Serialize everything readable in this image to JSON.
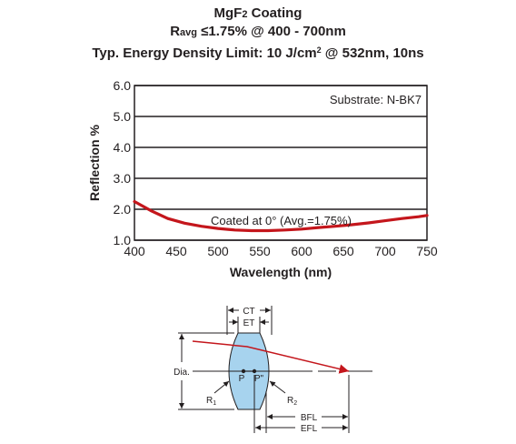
{
  "title": {
    "line1": {
      "pre": "MgF",
      "sub": "2",
      "post": " Coating"
    },
    "line2": {
      "pre": "R",
      "sub": "avg",
      "post": " ≤1.75% @ 400 - 700nm"
    },
    "line3": {
      "pre": "Typ. Energy Density Limit: 10 J/cm",
      "sup": "2",
      "post": " @ 532nm, 10ns"
    }
  },
  "chart_data": {
    "type": "line",
    "xlabel": "Wavelength (nm)",
    "ylabel": "Reflection %",
    "xlim": [
      400,
      750
    ],
    "ylim": [
      1.0,
      6.0
    ],
    "x_ticks": [
      "400",
      "450",
      "500",
      "550",
      "600",
      "650",
      "700",
      "750"
    ],
    "y_ticks": [
      "1.0",
      "2.0",
      "3.0",
      "4.0",
      "5.0",
      "6.0"
    ],
    "grid": "horizontal",
    "series_color": "#c4161c",
    "series": [
      {
        "x": [
          400,
          420,
          440,
          460,
          480,
          500,
          520,
          540,
          560,
          580,
          600,
          620,
          640,
          660,
          680,
          700,
          720,
          740,
          750
        ],
        "y": [
          2.25,
          1.95,
          1.7,
          1.55,
          1.45,
          1.38,
          1.33,
          1.31,
          1.31,
          1.33,
          1.36,
          1.41,
          1.45,
          1.5,
          1.56,
          1.63,
          1.7,
          1.76,
          1.8
        ]
      }
    ],
    "annotations": {
      "substrate": "Substrate: N-BK7",
      "coated": "Coated at 0°  (Avg.=1.75%)"
    }
  },
  "diagram": {
    "labels": {
      "ct": "CT",
      "et": "ET",
      "dia": "Dia.",
      "p": "P",
      "p2": "P\"",
      "r1": "R",
      "r1_sub": "1",
      "r2": "R",
      "r2_sub": "2",
      "bfl": "BFL",
      "efl": "EFL"
    },
    "lens_fill": "#a7d3ee",
    "ray_color": "#c4161c"
  }
}
